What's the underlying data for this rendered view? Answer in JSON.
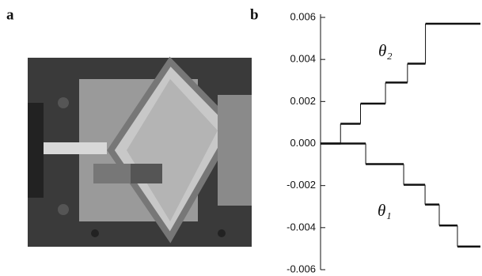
{
  "panels": [
    "a",
    "b"
  ],
  "chart_data": {
    "type": "step",
    "xlim": [
      0,
      8
    ],
    "ylim": [
      -0.006,
      0.006
    ],
    "yticks": [
      0.006,
      0.004,
      0.002,
      {
        "value": 0,
        "label": "0.000"
      },
      -0.002,
      -0.004,
      -0.006
    ],
    "series": [
      {
        "name": "θ₂",
        "color": "#111111",
        "x": [
          0,
          1,
          2,
          3.25,
          4.35,
          5.25
        ],
        "values": [
          0,
          0.00094,
          0.0019,
          0.0029,
          0.0038,
          0.0057
        ]
      },
      {
        "name": "θ₁",
        "color": "#111111",
        "x": [
          0,
          2.26,
          4.16,
          5.23,
          5.94,
          6.85
        ],
        "values": [
          0,
          -0.00098,
          -0.00196,
          -0.0029,
          -0.0039,
          -0.0049
        ]
      }
    ]
  }
}
